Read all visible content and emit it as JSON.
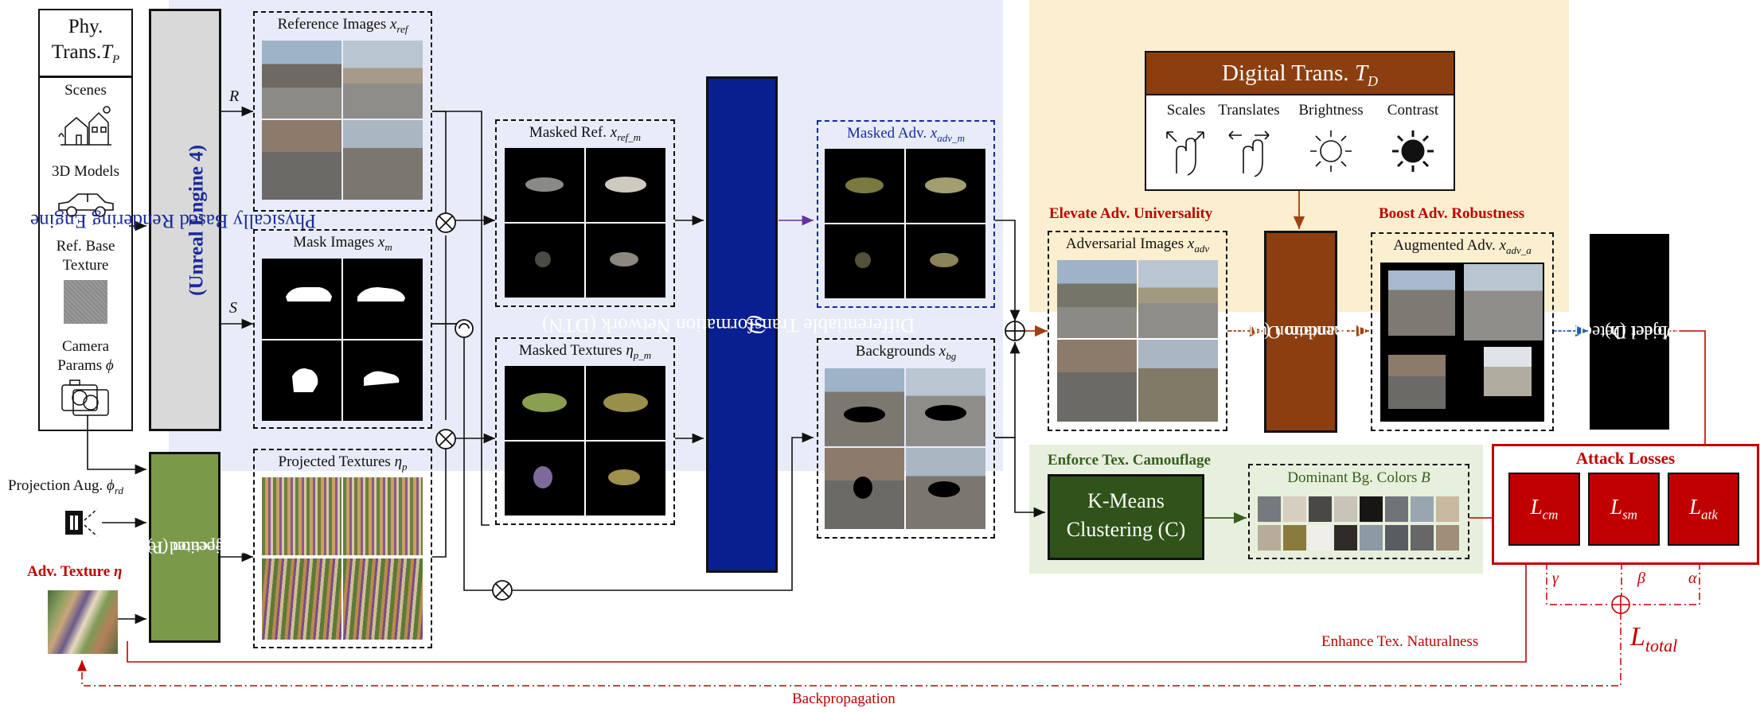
{
  "phy_trans": {
    "line1": "Phy.",
    "line2": "Trans.",
    "symbol": "T",
    "sub": "P"
  },
  "scenes_label": "Scenes",
  "models_label": "3D Models",
  "ref_texture_label1": "Ref. Base",
  "ref_texture_label2": "Texture",
  "camera_label1": "Camera",
  "camera_label2": "Params",
  "camera_symbol": "ϕ",
  "engine_label1": "Physically Based Rendering Engine",
  "engine_label2": "(Unreal Engine 4)",
  "arrow_R": "R",
  "arrow_S": "S",
  "proj_aug_label": "Projection Aug.",
  "proj_aug_symbol": "ϕ",
  "proj_aug_sub": "rd",
  "adv_texture_label": "Adv. Texture",
  "adv_texture_symbol": "η",
  "repeated_proj_label1": "Repeated Texture",
  "repeated_proj_label2": "Projection (P)",
  "ref_images_label": "Reference Images",
  "ref_images_sym": "x",
  "ref_images_sub": "ref",
  "mask_images_label": "Mask Images",
  "mask_images_sym": "x",
  "mask_images_sub": "m",
  "proj_textures_label": "Projected Textures",
  "proj_textures_sym": "η",
  "proj_textures_sub": "p",
  "masked_ref_label": "Masked Ref.",
  "masked_ref_sym": "x",
  "masked_ref_sub": "ref_m",
  "masked_tex_label": "Masked Textures",
  "masked_tex_sym": "η",
  "masked_tex_sub": "p_m",
  "dtn_label": "Differentiable Transformation Network (DTN)",
  "dtn_symbol": "(f)",
  "masked_adv_label": "Masked Adv.",
  "masked_adv_sym": "x",
  "masked_adv_sub": "adv_m",
  "backgrounds_label": "Backgrounds",
  "backgrounds_sym": "x",
  "backgrounds_sub": "bg",
  "digital_trans": {
    "label": "Digital Trans.",
    "symbol": "T",
    "sub": "D"
  },
  "transforms": [
    "Scales",
    "Translates",
    "Brightness",
    "Contrast"
  ],
  "elevate_label": "Elevate Adv. Universality",
  "adv_images_label": "Adversarial Images",
  "adv_images_sym": "x",
  "adv_images_sub": "adv",
  "random_aug_label1": "Random Output",
  "random_aug_label2": "Augmentation (A)",
  "boost_label": "Boost Adv. Robustness",
  "aug_adv_label": "Augmented Adv.",
  "aug_adv_sym": "x",
  "aug_adv_sub": "adv_a",
  "detector_label1": "Object Detection",
  "detector_label2": "Model (h)",
  "camouflage_label": "Enforce Tex. Camouflage",
  "kmeans_label1": "K-Means",
  "kmeans_label2": "Clustering (C)",
  "dominant_label": "Dominant Bg. Colors",
  "dominant_sym": "B",
  "attack_losses_label": "Attack Losses",
  "loss_cm": {
    "sym": "L",
    "sub": "cm"
  },
  "loss_sm": {
    "sym": "L",
    "sub": "sm"
  },
  "loss_atk": {
    "sym": "L",
    "sub": "atk"
  },
  "weight_gamma": "γ",
  "weight_beta": "β",
  "weight_alpha": "α",
  "total_loss": {
    "sym": "L",
    "sub": "total"
  },
  "naturalness_label": "Enhance Tex. Naturalness",
  "backprop_label": "Backpropagation",
  "colors": {
    "blue_region": "#e8ecf8",
    "yellow_region": "#fbefd0",
    "green_region": "#e6f0dc",
    "dtn_blue": "#0a1f8f",
    "brown": "#8b3e10",
    "dark_green": "#2f5319",
    "olive": "#7a9a4a",
    "red": "#c00000",
    "engine_gray": "#d9d9d9"
  },
  "swatches": [
    "#777a7c",
    "#d6cfc0",
    "#4a4846",
    "#c9c3b8",
    "#181614",
    "#6f7479",
    "#9aa6af",
    "#c9b8a0",
    "#b7ac9a",
    "#8a7a3e",
    "#efeeea",
    "#2f2c28",
    "#8c9aa4",
    "#595c60",
    "#676767",
    "#a08f78"
  ]
}
